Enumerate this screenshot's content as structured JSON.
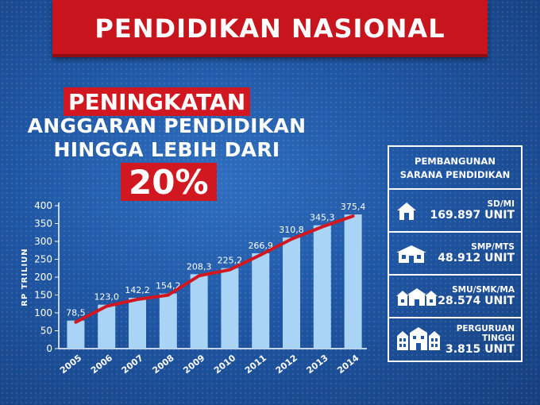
{
  "banner": {
    "title": "PENDIDIKAN NASIONAL"
  },
  "headline": {
    "highlight": "PENINGKATAN",
    "line2": "ANGGARAN PENDIDIKAN",
    "line3": "HINGGA LEBIH DARI",
    "percent": "20%"
  },
  "chart_data": {
    "type": "bar",
    "categories": [
      "2005",
      "2006",
      "2007",
      "2008",
      "2009",
      "2010",
      "2011",
      "2012",
      "2013",
      "2014"
    ],
    "values": [
      78.5,
      123.0,
      142.2,
      154.2,
      208.3,
      225.2,
      266.9,
      310.8,
      345.3,
      375.4
    ],
    "value_labels": [
      "78,5",
      "123,0",
      "142,2",
      "154,2",
      "208,3",
      "225,2",
      "266,9",
      "310,8",
      "345,3",
      "375,4"
    ],
    "ylabel": "RP TRILIUN",
    "ylim": [
      0,
      400
    ],
    "yticks": [
      0,
      50,
      100,
      150,
      200,
      250,
      300,
      350,
      400
    ],
    "trend_line": true,
    "colors": {
      "bar": "#a9d4f5",
      "trend": "#d1171f"
    }
  },
  "panel": {
    "title_line1": "PEMBANGUNAN",
    "title_line2": "SARANA PENDIDIKAN",
    "rows": [
      {
        "label": "SD/MI",
        "value": "169.897 UNIT",
        "icon": "house-icon"
      },
      {
        "label": "SMP/MTS",
        "value": "48.912 UNIT",
        "icon": "school-building-icon"
      },
      {
        "label": "SMU/SMK/MA",
        "value": "28.574 UNIT",
        "icon": "school-complex-icon"
      },
      {
        "label_line1": "PERGURUAN",
        "label_line2": "TINGGI",
        "value": "3.815 UNIT",
        "icon": "university-icon"
      }
    ]
  }
}
